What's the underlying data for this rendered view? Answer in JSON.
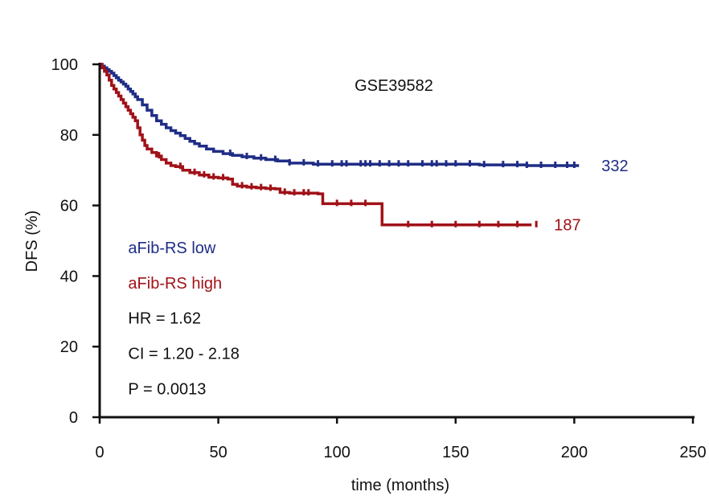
{
  "chart_data": {
    "type": "line",
    "subtype": "kaplan-meier",
    "title": "GSE39582",
    "xlabel": "time (months)",
    "ylabel": "DFS (%)",
    "xlim": [
      0,
      250
    ],
    "ylim": [
      0,
      100
    ],
    "x_ticks": [
      0,
      50,
      100,
      150,
      200,
      250
    ],
    "y_ticks": [
      0,
      20,
      40,
      60,
      80,
      100
    ],
    "grid": false,
    "series": [
      {
        "name": "aFib-RS low",
        "color": "#1f2d86",
        "end_label": "332",
        "x": [
          0,
          1,
          2,
          3,
          4,
          5,
          6,
          7,
          8,
          9,
          10,
          11,
          12,
          13,
          14,
          15,
          16,
          18,
          20,
          22,
          24,
          26,
          28,
          30,
          32,
          34,
          36,
          38,
          40,
          42,
          45,
          48,
          52,
          56,
          60,
          65,
          70,
          75,
          80,
          90,
          100,
          120,
          140,
          160,
          180,
          200,
          202
        ],
        "values": [
          100,
          99.5,
          99,
          98.5,
          98,
          97.5,
          96.8,
          96.2,
          95.5,
          95,
          94.4,
          93.8,
          93,
          92.3,
          91.6,
          90.8,
          90,
          88.5,
          87,
          85.5,
          84,
          83,
          82,
          81.2,
          80.5,
          79.8,
          79,
          78.2,
          77.5,
          76.8,
          76,
          75.3,
          74.7,
          74.2,
          73.8,
          73.4,
          73,
          72.6,
          72,
          71.7,
          71.7,
          71.7,
          71.7,
          71.5,
          71.3,
          71.3,
          71.3
        ],
        "censor_x": [
          55,
          62,
          68,
          74,
          80,
          86,
          92,
          98,
          102,
          104,
          110,
          112,
          114,
          118,
          122,
          126,
          130,
          136,
          140,
          142,
          146,
          150,
          156,
          162,
          170,
          176,
          180,
          186,
          192,
          197,
          200
        ]
      },
      {
        "name": "aFib-RS high",
        "color": "#a01218",
        "end_label": "187",
        "x": [
          0,
          1,
          2,
          3,
          4,
          5,
          6,
          7,
          8,
          9,
          10,
          11,
          12,
          13,
          14,
          15,
          16,
          17,
          18,
          19,
          20,
          22,
          24,
          26,
          28,
          30,
          32,
          35,
          38,
          42,
          46,
          50,
          54,
          56,
          58,
          62,
          66,
          70,
          74,
          76,
          80,
          85,
          92,
          94,
          100,
          110,
          118,
          119,
          130,
          150,
          170,
          182
        ],
        "values": [
          100,
          99,
          98,
          97,
          95.5,
          94,
          93,
          92,
          91,
          90,
          89,
          88,
          87,
          86,
          85,
          84,
          82,
          80,
          78.5,
          77,
          76,
          75,
          74,
          73,
          72,
          71.3,
          71,
          70,
          69.3,
          68.6,
          68,
          67.8,
          67.5,
          66,
          65.5,
          65.2,
          65,
          64.8,
          64.7,
          63.7,
          63.5,
          63.5,
          63.3,
          60.5,
          60.5,
          60.5,
          60.5,
          54.5,
          54.5,
          54.5,
          54.5,
          54.5
        ],
        "censor_x": [
          25,
          34,
          40,
          44,
          48,
          52,
          60,
          64,
          68,
          72,
          78,
          82,
          86,
          88,
          100,
          106,
          112,
          130,
          140,
          150,
          160,
          168,
          176,
          184
        ]
      }
    ],
    "annotations": [
      {
        "text": "aFib-RS low",
        "color": "#1f2d86",
        "x": 12,
        "y": 46.5
      },
      {
        "text": "aFib-RS high",
        "color": "#a01218",
        "x": 12,
        "y": 36.5
      },
      {
        "text": "HR = 1.62",
        "color": "#111111",
        "x": 12,
        "y": 26.5
      },
      {
        "text": "CI = 1.20 - 2.18",
        "color": "#111111",
        "x": 12,
        "y": 16.5
      },
      {
        "text": "P = 0.0013",
        "color": "#111111",
        "x": 12,
        "y": 6.5
      }
    ]
  }
}
